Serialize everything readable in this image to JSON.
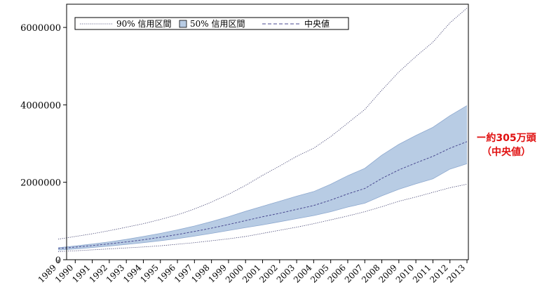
{
  "chart_data": {
    "type": "line",
    "title": "",
    "xlabel": "",
    "ylabel": "",
    "x": [
      "1989",
      "1990",
      "1991",
      "1992",
      "1993",
      "1994",
      "1995",
      "1996",
      "1997",
      "1998",
      "1999",
      "2000",
      "2001",
      "2002",
      "2003",
      "2004",
      "2005",
      "2006",
      "2007",
      "2008",
      "2009",
      "2010",
      "2011",
      "2012",
      "2013"
    ],
    "ylim": [
      0,
      6600000
    ],
    "yticks": [
      0,
      2000000,
      4000000,
      6000000
    ],
    "ytick_labels": [
      "0",
      "2000000",
      "4000000",
      "6000000"
    ],
    "grid": false,
    "legend_position": "top-left",
    "legend": {
      "ci90": "90% 信用区間",
      "ci50": "50% 信用区間",
      "median": "中央値"
    },
    "series": [
      {
        "name": "90% 信用区間",
        "role": "upper90",
        "values": [
          530000,
          600000,
          670000,
          750000,
          840000,
          930000,
          1040000,
          1160000,
          1310000,
          1490000,
          1690000,
          1920000,
          2180000,
          2420000,
          2670000,
          2880000,
          3180000,
          3530000,
          3880000,
          4380000,
          4850000,
          5250000,
          5620000,
          6120000,
          6500000
        ]
      },
      {
        "name": "50% 信用区間",
        "role": "upper50",
        "values": [
          310000,
          355000,
          405000,
          460000,
          525000,
          600000,
          680000,
          770000,
          870000,
          985000,
          1110000,
          1250000,
          1380000,
          1510000,
          1640000,
          1760000,
          1950000,
          2170000,
          2360000,
          2700000,
          2980000,
          3210000,
          3420000,
          3720000,
          3980000
        ]
      },
      {
        "name": "中央値",
        "role": "median",
        "values": [
          290000,
          325000,
          365000,
          410000,
          460000,
          515000,
          580000,
          650000,
          730000,
          815000,
          910000,
          1010000,
          1110000,
          1200000,
          1300000,
          1400000,
          1540000,
          1700000,
          1840000,
          2100000,
          2320000,
          2500000,
          2670000,
          2880000,
          3050000
        ]
      },
      {
        "name": "50% 信用区間",
        "role": "lower50",
        "values": [
          250000,
          280000,
          315000,
          355000,
          395000,
          440000,
          490000,
          545000,
          610000,
          680000,
          755000,
          830000,
          900000,
          980000,
          1060000,
          1140000,
          1240000,
          1360000,
          1460000,
          1650000,
          1820000,
          1960000,
          2090000,
          2340000,
          2480000
        ]
      },
      {
        "name": "90% 信用区間",
        "role": "lower90",
        "values": [
          210000,
          230000,
          255000,
          280000,
          305000,
          330000,
          360000,
          400000,
          440000,
          490000,
          540000,
          600000,
          680000,
          760000,
          840000,
          930000,
          1030000,
          1130000,
          1240000,
          1370000,
          1510000,
          1620000,
          1740000,
          1860000,
          1950000
        ]
      }
    ],
    "colors": {
      "band50": "#b8cce4",
      "band50_stroke": "#8ea9cf",
      "median": "#4a4a90",
      "ci90": "#333366",
      "axis": "#000000",
      "annotation": "#e01010"
    },
    "annotation": {
      "line1": "ー約305万頭",
      "line2": "（中央値）"
    }
  }
}
